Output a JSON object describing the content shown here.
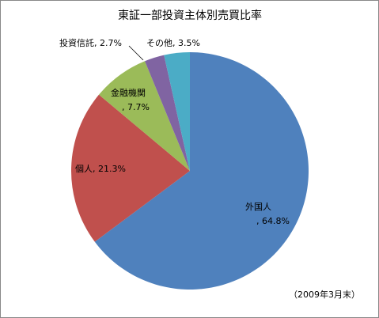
{
  "chart_data": {
    "type": "pie",
    "title": "東証一部投資主体別売買比率",
    "categories": [
      "外国人",
      "個人",
      "金融機関",
      "投資信託",
      "その他"
    ],
    "values": [
      64.8,
      21.3,
      7.7,
      2.7,
      3.5
    ],
    "value_labels": [
      ", 64.8%",
      ", 21.3%",
      ", 7.7%",
      ", 2.7%",
      ", 3.5%"
    ],
    "colors": [
      "#4f81bd",
      "#c0504d",
      "#9bbb59",
      "#8064a2",
      "#4bacc6"
    ],
    "note": "（2009年3月末）"
  }
}
